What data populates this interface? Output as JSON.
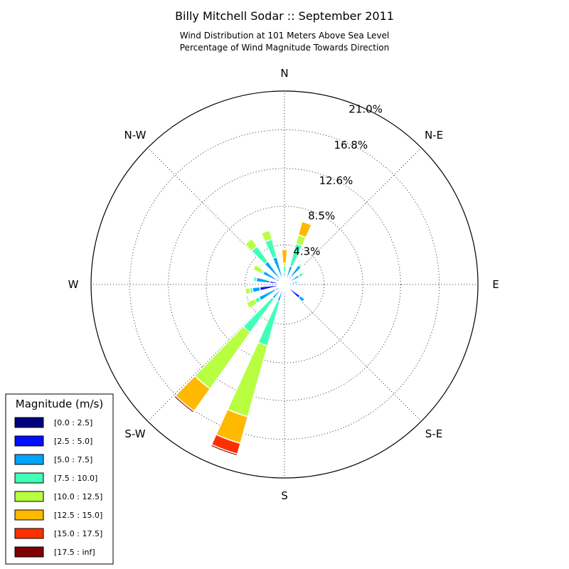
{
  "chart_data": {
    "type": "windrose",
    "title": "Billy Mitchell Sodar :: September 2011",
    "subtitle_lines": [
      "Wind Distribution at 101 Meters Above Sea Level",
      "Percentage of Wind Magnitude Towards Direction"
    ],
    "direction_labels": [
      "N",
      "N-E",
      "E",
      "S-E",
      "S",
      "S-W",
      "W",
      "N-W"
    ],
    "radial_ticks": [
      "4.3%",
      "8.5%",
      "12.6%",
      "16.8%",
      "21.0%"
    ],
    "radial_tick_values": [
      4.3,
      8.5,
      12.6,
      16.8,
      21.0
    ],
    "radial_max": 21.0,
    "sector_count": 36,
    "legend": {
      "title": "Magnitude (m/s)",
      "bins": [
        "[0.0 : 2.5]",
        "[2.5 : 5.0]",
        "[5.0 : 7.5]",
        "[7.5 : 10.0]",
        "[10.0 : 12.5]",
        "[12.5 : 15.0]",
        "[15.0 : 17.5]",
        "[17.5 : inf]"
      ],
      "colors": [
        "#00007f",
        "#0010ff",
        "#00a4ff",
        "#40ffb7",
        "#b7ff40",
        "#ffb900",
        "#ff3000",
        "#7f0000"
      ]
    },
    "sectors": [
      {
        "dir": 0,
        "values": [
          0.1,
          0.4,
          0.8,
          0.7,
          0.3,
          1.5,
          0,
          0
        ]
      },
      {
        "dir": 20,
        "values": [
          0.1,
          0.5,
          1.5,
          2.5,
          1.0,
          1.5,
          0,
          0
        ]
      },
      {
        "dir": 40,
        "values": [
          0.1,
          1.0,
          1.5,
          0.2,
          0.1,
          0,
          0,
          0
        ]
      },
      {
        "dir": 60,
        "values": [
          0.1,
          0.5,
          1.2,
          0.5,
          0.2,
          0,
          0,
          0
        ]
      },
      {
        "dir": 80,
        "values": [
          0.1,
          1.0,
          0.3,
          0.2,
          0,
          0,
          0,
          0
        ]
      },
      {
        "dir": 100,
        "values": [
          0.1,
          0.2,
          0,
          0,
          0,
          0,
          0,
          0
        ]
      },
      {
        "dir": 130,
        "values": [
          0.1,
          2.0,
          0.6,
          0,
          0,
          0,
          0,
          0
        ]
      },
      {
        "dir": 180,
        "values": [
          0.1,
          0.5,
          0.5,
          0,
          0,
          0,
          0,
          0
        ]
      },
      {
        "dir": 200,
        "values": [
          0.1,
          0.5,
          1.3,
          5.0,
          8.0,
          3.0,
          1.2,
          0.2
        ]
      },
      {
        "dir": 220,
        "values": [
          0.1,
          0.5,
          1.3,
          4.5,
          7.5,
          3.0,
          0,
          0.2
        ]
      },
      {
        "dir": 240,
        "values": [
          0.1,
          1.0,
          2.0,
          0.5,
          1.0,
          0,
          0,
          0
        ]
      },
      {
        "dir": 260,
        "values": [
          0.2,
          2.5,
          0.8,
          0.3,
          0.5,
          0,
          0,
          0
        ]
      },
      {
        "dir": 280,
        "values": [
          0.1,
          1.5,
          1.5,
          0.3,
          0,
          0,
          0,
          0
        ]
      },
      {
        "dir": 300,
        "values": [
          0.1,
          1.0,
          1.5,
          0.2,
          1.0,
          0,
          0,
          0
        ]
      },
      {
        "dir": 320,
        "values": [
          0.1,
          0.5,
          2.5,
          2.0,
          1.0,
          0,
          0,
          0
        ]
      },
      {
        "dir": 340,
        "values": [
          0.1,
          0.5,
          2.5,
          2.0,
          1.0,
          0,
          0,
          0
        ]
      }
    ]
  }
}
